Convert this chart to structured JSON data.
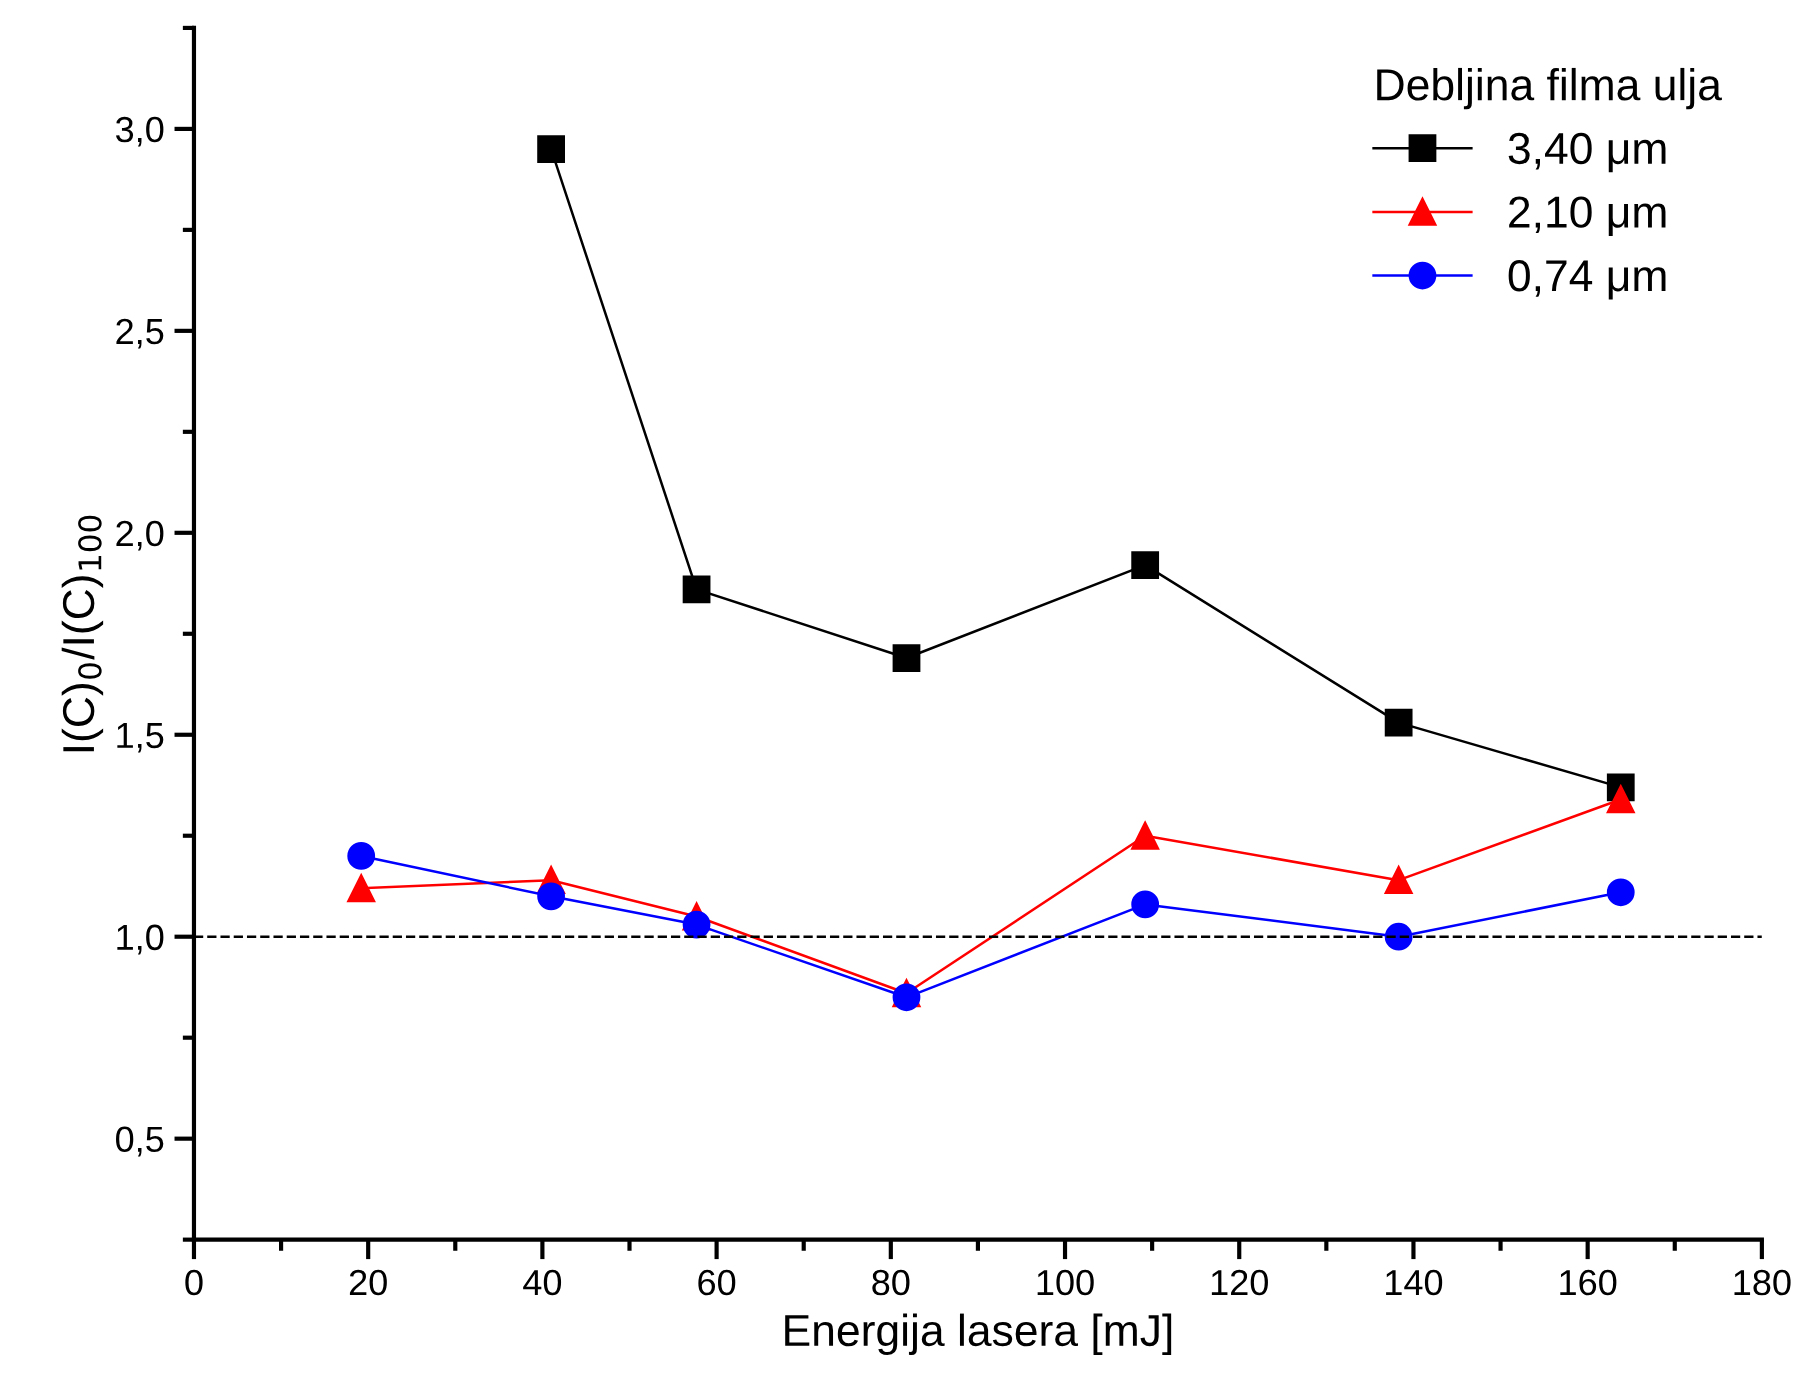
{
  "chart_data": {
    "type": "line",
    "xlabel": "Energija lasera [mJ]",
    "ylabel": "I(C)$_{0}$/I(C)$_{100}$",
    "legend_title": "Debljina filma ulja",
    "x": [
      19.2,
      41,
      57.7,
      81.8,
      109.2,
      138.3,
      163.8
    ],
    "series": [
      {
        "name": "3,40 μm",
        "color": "#000000",
        "marker": "square",
        "x": [
          41,
          57.7,
          81.8,
          109.2,
          138.3,
          163.8
        ],
        "values": [
          2.95,
          1.86,
          1.69,
          1.92,
          1.53,
          1.37
        ]
      },
      {
        "name": "2,10 μm",
        "color": "#ff0000",
        "marker": "triangle",
        "values": [
          1.12,
          1.14,
          1.05,
          0.86,
          1.25,
          1.14,
          1.34
        ]
      },
      {
        "name": "0,74 μm",
        "color": "#0000ff",
        "marker": "circle",
        "values": [
          1.2,
          1.1,
          1.03,
          0.85,
          1.08,
          1.0,
          1.11
        ]
      }
    ],
    "xlim": [
      0,
      180
    ],
    "xticks": [
      0,
      20,
      40,
      60,
      80,
      100,
      120,
      140,
      160,
      180
    ],
    "ylim": [
      0.25,
      3.25
    ],
    "yticks": [
      {
        "value": 0.5,
        "label": "0,5"
      },
      {
        "value": 1.0,
        "label": "1,0"
      },
      {
        "value": 1.5,
        "label": "1,5"
      },
      {
        "value": 2.0,
        "label": "2,0"
      },
      {
        "value": 2.5,
        "label": "2,5"
      },
      {
        "value": 3.0,
        "label": "3,0"
      }
    ],
    "ref_lines": [
      {
        "axis": "y",
        "value": 1.0,
        "color": "#000000",
        "line_style": "dashed"
      }
    ],
    "grid": false,
    "legend": "top right",
    "line_style": "solid"
  }
}
